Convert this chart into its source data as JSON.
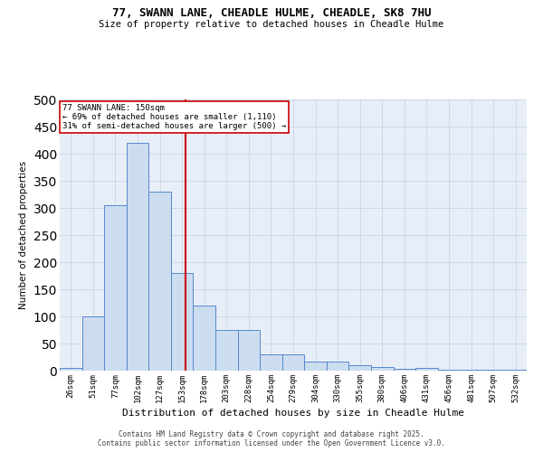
{
  "title1": "77, SWANN LANE, CHEADLE HULME, CHEADLE, SK8 7HU",
  "title2": "Size of property relative to detached houses in Cheadle Hulme",
  "xlabel": "Distribution of detached houses by size in Cheadle Hulme",
  "ylabel": "Number of detached properties",
  "categories": [
    "26sqm",
    "51sqm",
    "77sqm",
    "102sqm",
    "127sqm",
    "153sqm",
    "178sqm",
    "203sqm",
    "228sqm",
    "254sqm",
    "279sqm",
    "304sqm",
    "330sqm",
    "355sqm",
    "380sqm",
    "406sqm",
    "431sqm",
    "456sqm",
    "481sqm",
    "507sqm",
    "532sqm"
  ],
  "bar_values": [
    5,
    100,
    305,
    420,
    330,
    180,
    120,
    75,
    75,
    30,
    30,
    17,
    17,
    10,
    7,
    3,
    5,
    2,
    2,
    1,
    2
  ],
  "bar_color": "#ccddf0",
  "bar_edge_color": "#5588cc",
  "annotation_title": "77 SWANN LANE: 150sqm",
  "annotation_line1": "← 69% of detached houses are smaller (1,110)",
  "annotation_line2": "31% of semi-detached houses are larger (500) →",
  "red_line_x": 5.15,
  "vline_color": "#cc0000",
  "copyright": "Contains HM Land Registry data © Crown copyright and database right 2025.\nContains public sector information licensed under the Open Government Licence v3.0.",
  "background_color": "#ffffff",
  "grid_color": "#c8d4e8",
  "axes_bg_color": "#e8eef8",
  "ylim": [
    0,
    500
  ],
  "yticks": [
    0,
    50,
    100,
    150,
    200,
    250,
    300,
    350,
    400,
    450,
    500
  ]
}
